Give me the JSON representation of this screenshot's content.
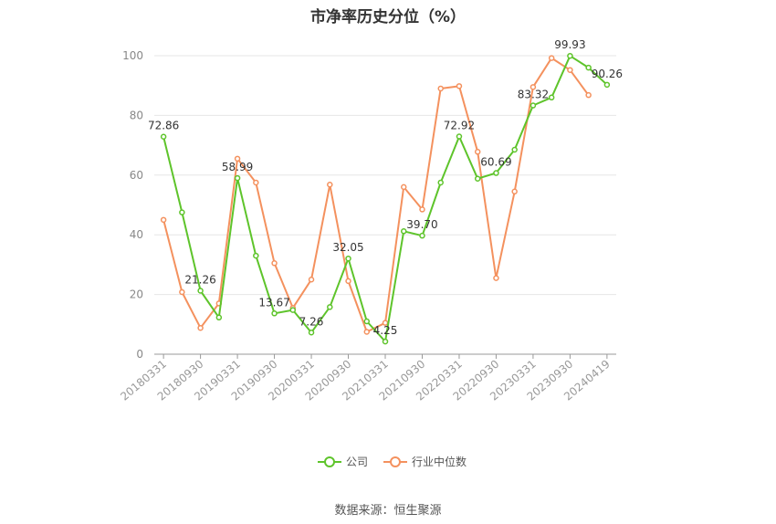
{
  "chart_data": {
    "type": "line",
    "title": "市净率历史分位（%）",
    "ylim": [
      0,
      100
    ],
    "yticks": [
      0,
      20,
      40,
      60,
      80,
      100
    ],
    "grid": true,
    "legend_position": "bottom",
    "x": [
      "20180331",
      "20180630",
      "20180930",
      "20181231",
      "20190331",
      "20190630",
      "20190930",
      "20191231",
      "20200331",
      "20200630",
      "20200930",
      "20201231",
      "20210331",
      "20210630",
      "20210930",
      "20211231",
      "20220331",
      "20220630",
      "20220930",
      "20221231",
      "20230331",
      "20230630",
      "20230930",
      "20231231",
      "20240419"
    ],
    "x_tick_labels": [
      "20180331",
      "20180930",
      "20190331",
      "20190930",
      "20200331",
      "20200930",
      "20210331",
      "20210930",
      "20220331",
      "20220930",
      "20230331",
      "20230930",
      "20240419"
    ],
    "series": [
      {
        "name": "公司",
        "color": "#5ec42b",
        "values": [
          72.86,
          47.5,
          21.26,
          12.3,
          58.99,
          33.0,
          13.67,
          14.8,
          7.26,
          15.8,
          32.05,
          11.0,
          4.25,
          41.2,
          39.7,
          57.5,
          72.92,
          58.8,
          60.69,
          68.5,
          83.32,
          86.0,
          99.93,
          96.0,
          90.26
        ],
        "labels": {
          "0": "72.86",
          "2": "21.26",
          "4": "58.99",
          "6": "13.67",
          "8": "7.26",
          "10": "32.05",
          "12": "4.25",
          "14": "39.70",
          "16": "72.92",
          "18": "60.69",
          "20": "83.32",
          "22": "99.93",
          "24": "90.26"
        }
      },
      {
        "name": "行业中位数",
        "color": "#f4915e",
        "values": [
          45.0,
          20.8,
          8.8,
          17.0,
          65.5,
          57.5,
          30.5,
          15.5,
          25.0,
          56.8,
          24.5,
          7.5,
          10.5,
          56.0,
          48.5,
          89.0,
          89.8,
          67.8,
          25.5,
          54.5,
          89.5,
          99.2,
          95.2,
          86.8,
          null
        ]
      }
    ]
  },
  "footer": {
    "source": "数据来源：恒生聚源"
  }
}
